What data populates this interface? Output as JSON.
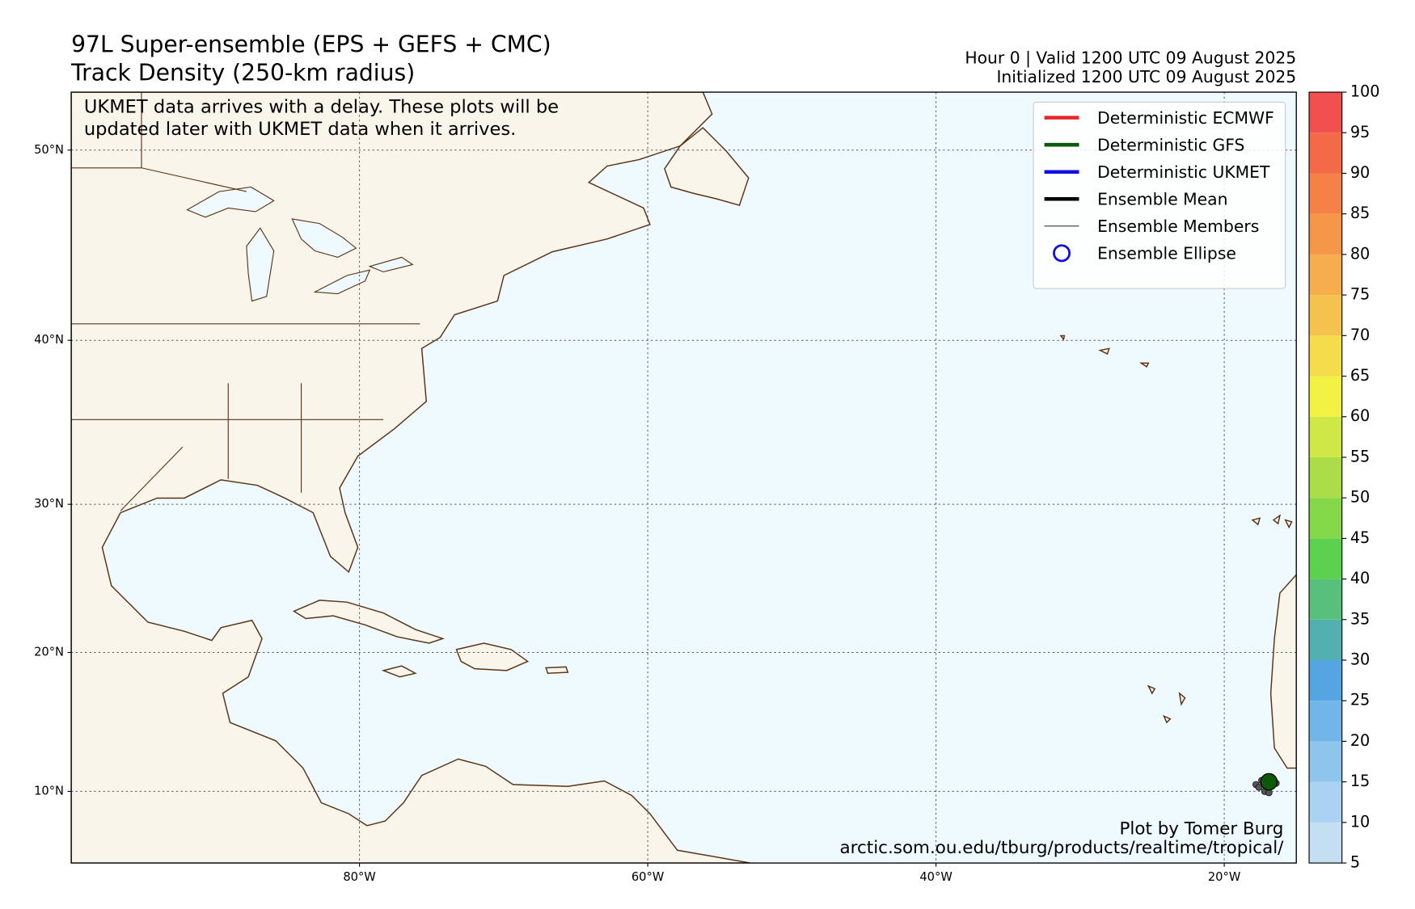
{
  "header": {
    "title": "97L Super-ensemble (EPS + GEFS + CMC)",
    "subtitle": "Track Density (250-km radius)",
    "valid": "Hour 0 | Valid 1200 UTC 09 August 2025",
    "initialized": "Initialized 1200 UTC 09 August 2025"
  },
  "note": [
    "UKMET data arrives with a delay. These plots will be",
    "updated later with UKMET data when it arrives."
  ],
  "credit": [
    "Plot by Tomer Burg",
    "arctic.som.ou.edu/tburg/products/realtime/tropical/"
  ],
  "map": {
    "xlim": [
      -100,
      -15
    ],
    "ylim": [
      4.7,
      52.7
    ],
    "grid": true,
    "xticks": [
      {
        "value": -80,
        "label": "80°W"
      },
      {
        "value": -60,
        "label": "60°W"
      },
      {
        "value": -40,
        "label": "40°W"
      },
      {
        "value": -20,
        "label": "20°W"
      }
    ],
    "yticks": [
      {
        "value": 10,
        "label": "10°N"
      },
      {
        "value": 20,
        "label": "20°N"
      },
      {
        "value": 30,
        "label": "30°N"
      },
      {
        "value": 40,
        "label": "40°N"
      },
      {
        "value": 50,
        "label": "50°N"
      }
    ]
  },
  "legend": {
    "corner": "upper right",
    "entries": [
      {
        "label": "Deterministic ECMWF",
        "color": "#e8262a",
        "kind": "line",
        "width": 4
      },
      {
        "label": "Deterministic GFS",
        "color": "#0b5a0b",
        "kind": "line",
        "width": 4
      },
      {
        "label": "Deterministic UKMET",
        "color": "#1010e0",
        "kind": "line",
        "width": 4
      },
      {
        "label": "Ensemble Mean",
        "color": "#000000",
        "kind": "line",
        "width": 4
      },
      {
        "label": "Ensemble Members",
        "color": "#000000",
        "kind": "line",
        "width": 0.8
      },
      {
        "label": "Ensemble Ellipse",
        "color": "#1010e0",
        "kind": "circle",
        "width": 2.5
      }
    ]
  },
  "tracks": {
    "gfs": {
      "lon": -16.9,
      "lat": 10.7,
      "color": "#0b5a0b"
    },
    "members": {
      "color": "#555555",
      "lon": [
        -17.8,
        -17.4,
        -17.0,
        -16.7,
        -17.2,
        -16.4,
        -17.6,
        -16.9,
        -17.1
      ],
      "lat": [
        10.5,
        10.8,
        10.2,
        10.4,
        10.0,
        10.6,
        10.3,
        9.9,
        10.9
      ]
    }
  },
  "colorbar": {
    "ticks": [
      5,
      10,
      15,
      20,
      25,
      30,
      35,
      40,
      45,
      50,
      55,
      60,
      65,
      70,
      75,
      80,
      85,
      90,
      95,
      100
    ],
    "colors": [
      "#c4dff2",
      "#a9d3f0",
      "#8ec5ed",
      "#72b5e8",
      "#55a5e3",
      "#53b0b0",
      "#57c07a",
      "#5cd150",
      "#85d84a",
      "#aadd48",
      "#d0e845",
      "#f2f244",
      "#f5dc4a",
      "#f5c34d",
      "#f5ad4e",
      "#f59648",
      "#f58048",
      "#f46a48",
      "#f25050"
    ]
  }
}
